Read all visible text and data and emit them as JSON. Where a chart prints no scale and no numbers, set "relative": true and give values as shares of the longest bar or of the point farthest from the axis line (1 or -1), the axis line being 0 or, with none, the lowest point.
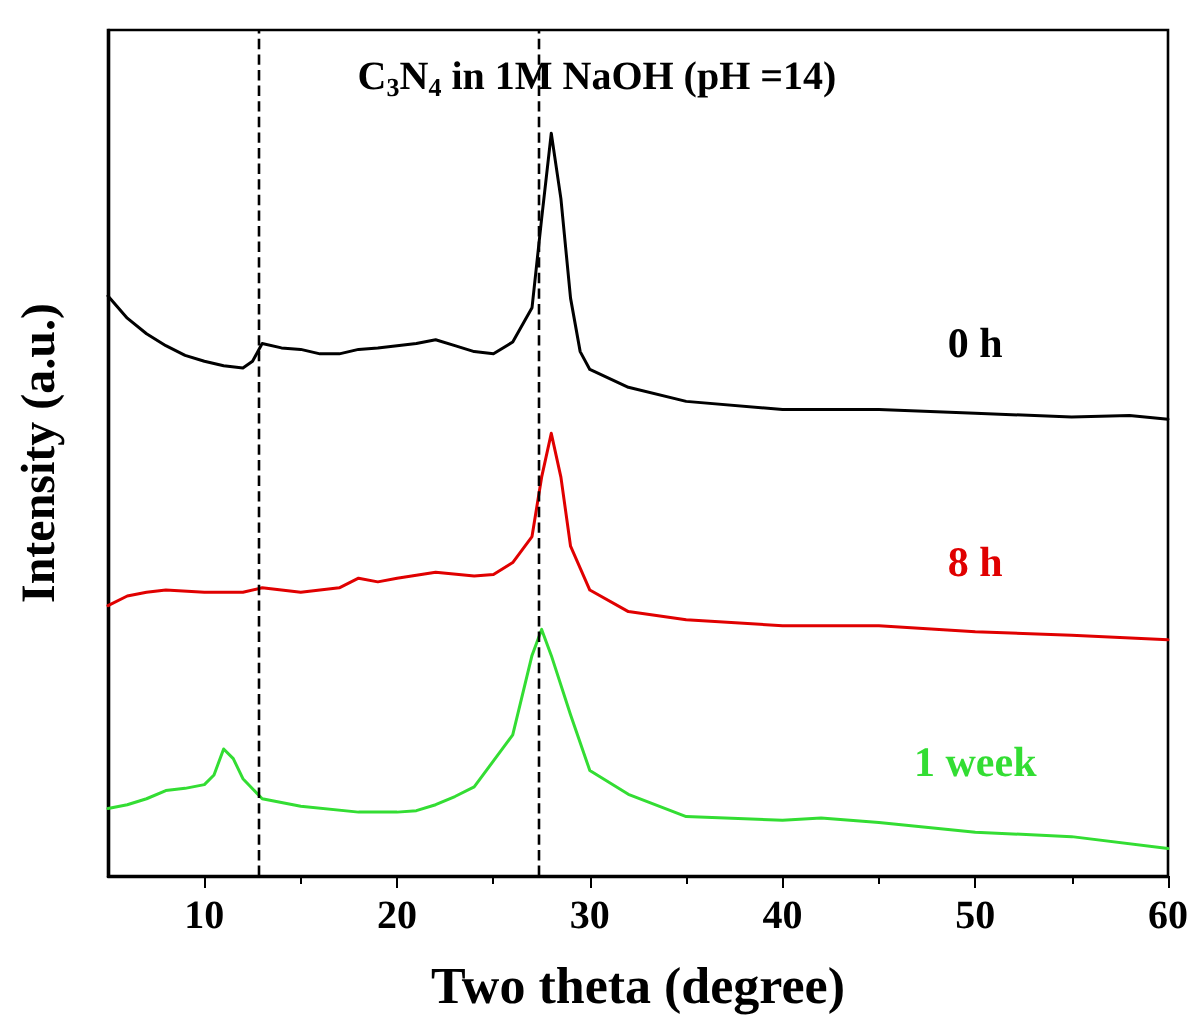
{
  "chart_data": {
    "type": "line",
    "title": "C$_{3}$N$_{4}$ in 1M NaOH (pH =14)",
    "xlabel": "Two theta (degree)",
    "ylabel": "Intensity (a.u.)",
    "relative": true,
    "xlim": [
      5,
      60
    ],
    "xticks": [
      10,
      20,
      30,
      40,
      50,
      60
    ],
    "grid": false,
    "legend": false,
    "marker": "none",
    "line_style": "solid",
    "ref_lines": [
      {
        "axis": "x",
        "value": 12.8,
        "line_style": "dashed",
        "color": "#000000"
      },
      {
        "axis": "x",
        "value": 27.3,
        "line_style": "dashed",
        "color": "#000000"
      }
    ],
    "series": [
      {
        "name": "0 h",
        "color": "#000000",
        "x": [
          5,
          6,
          7,
          8,
          9,
          10,
          11,
          12,
          12.5,
          13,
          14,
          15,
          16,
          17,
          18,
          19,
          20,
          21,
          22,
          23,
          24,
          25,
          26,
          27,
          27.5,
          28,
          28.5,
          29,
          29.5,
          30,
          32,
          35,
          40,
          45,
          50,
          55,
          58,
          60
        ],
        "values": [
          0.781,
          0.751,
          0.73,
          0.714,
          0.701,
          0.693,
          0.687,
          0.684,
          0.693,
          0.717,
          0.711,
          0.709,
          0.703,
          0.703,
          0.709,
          0.711,
          0.714,
          0.717,
          0.722,
          0.714,
          0.706,
          0.703,
          0.719,
          0.765,
          0.885,
          1,
          0.912,
          0.778,
          0.706,
          0.682,
          0.658,
          0.639,
          0.628,
          0.628,
          0.623,
          0.618,
          0.62,
          0.615
        ]
      },
      {
        "name": "8 h",
        "color": "#e00000",
        "x": [
          5,
          6,
          7,
          8,
          10,
          12,
          13,
          14,
          15,
          17,
          18,
          19,
          20,
          22,
          24,
          25,
          26,
          27,
          27.5,
          28,
          28.5,
          29,
          30,
          32,
          35,
          40,
          45,
          50,
          55,
          60
        ],
        "values": [
          0.364,
          0.377,
          0.382,
          0.385,
          0.382,
          0.382,
          0.388,
          0.385,
          0.382,
          0.388,
          0.401,
          0.396,
          0.401,
          0.409,
          0.404,
          0.406,
          0.422,
          0.457,
          0.537,
          0.596,
          0.537,
          0.444,
          0.385,
          0.356,
          0.345,
          0.337,
          0.337,
          0.329,
          0.324,
          0.318
        ]
      },
      {
        "name": "1 week",
        "color": "#33dd33",
        "x": [
          5,
          6,
          7,
          8,
          9,
          10,
          10.5,
          11,
          11.5,
          12,
          13,
          15,
          18,
          20,
          21,
          22,
          23,
          24,
          25,
          26,
          27,
          27.5,
          28,
          29,
          30,
          32,
          35,
          40,
          42,
          45,
          50,
          55,
          60
        ],
        "values": [
          0.091,
          0.096,
          0.104,
          0.115,
          0.118,
          0.123,
          0.136,
          0.171,
          0.158,
          0.131,
          0.104,
          0.094,
          0.086,
          0.086,
          0.088,
          0.096,
          0.107,
          0.12,
          0.155,
          0.19,
          0.297,
          0.332,
          0.297,
          0.217,
          0.142,
          0.11,
          0.08,
          0.075,
          0.078,
          0.072,
          0.059,
          0.053,
          0.037
        ]
      }
    ]
  }
}
